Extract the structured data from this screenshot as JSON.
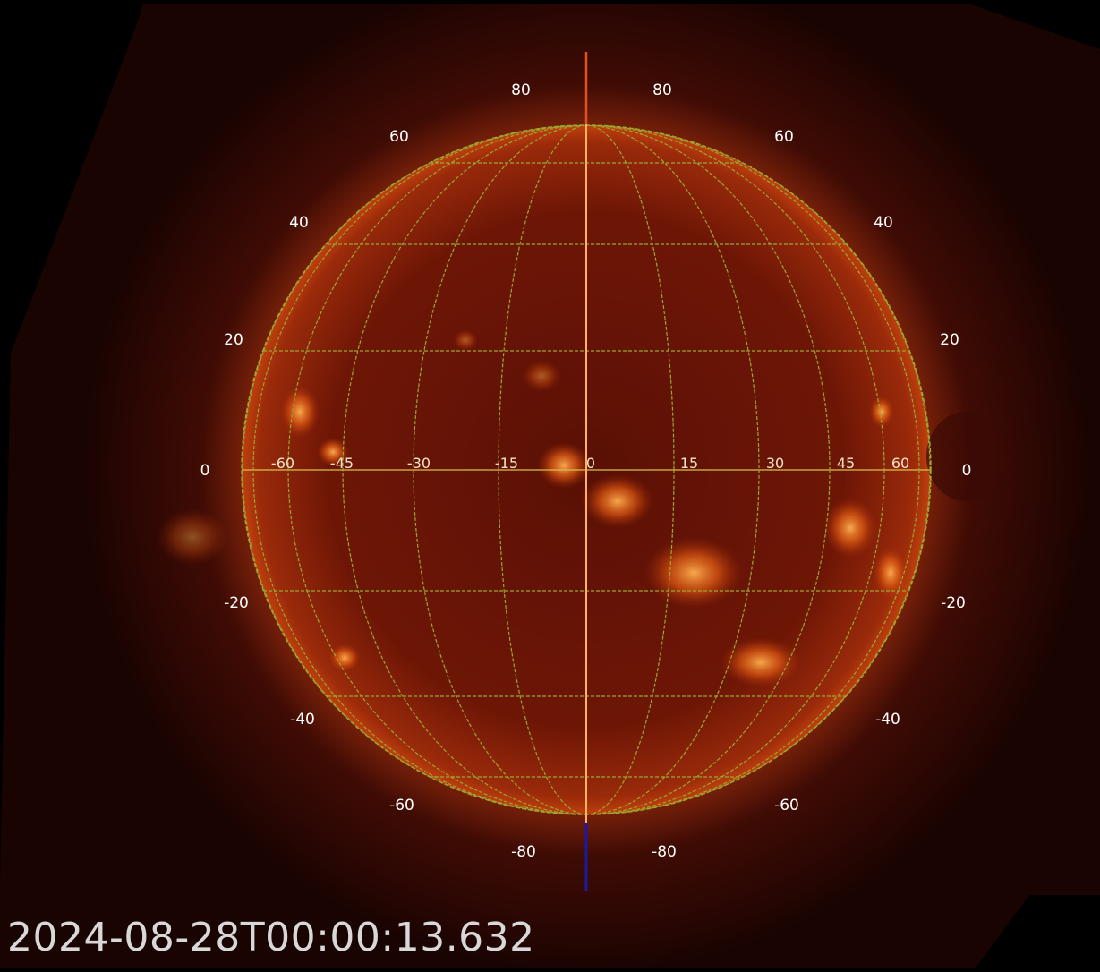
{
  "timestamp": "2024-08-28T00:00:13.632",
  "colors": {
    "background": "#000000",
    "corona": "#3a0a04",
    "disk": "#6a1406",
    "grid": "#9aa830",
    "axis": "#ffb060",
    "north_pole_marker": "#e05020",
    "south_pole_marker": "#1a1aa0",
    "label": "#ffffff"
  },
  "latitude_labels_left": [
    "80",
    "60",
    "40",
    "20",
    "0",
    "-20",
    "-40",
    "-60",
    "-80"
  ],
  "latitude_labels_right": [
    "80",
    "60",
    "40",
    "20",
    "0",
    "-20",
    "-40",
    "-60",
    "-80"
  ],
  "longitude_labels": [
    "-60",
    "-45",
    "-30",
    "-15",
    "0",
    "15",
    "30",
    "45",
    "60"
  ]
}
